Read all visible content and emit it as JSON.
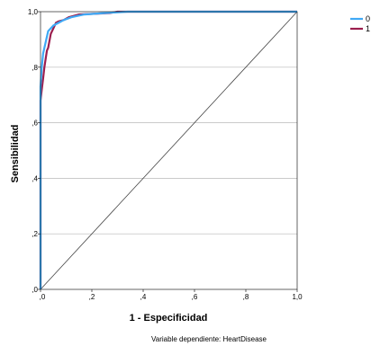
{
  "chart_data": {
    "type": "line",
    "title": "",
    "xlabel": "1 - Especificidad",
    "ylabel": "Sensibilidad",
    "footnote": "Variable dependiente: HeartDisease",
    "xlim": [
      0,
      1
    ],
    "ylim": [
      0,
      1
    ],
    "xticks": [
      ",0",
      ",2",
      ",4",
      ",6",
      ",8",
      "1,0"
    ],
    "yticks": [
      ",0",
      ",2",
      ",4",
      ",6",
      ",8",
      "1,0"
    ],
    "grid": "horizontal",
    "legend_position": "top-right",
    "series": [
      {
        "name": "0",
        "color": "#3fa9f5",
        "points": [
          [
            0,
            0
          ],
          [
            0,
            0.73
          ],
          [
            0.005,
            0.8
          ],
          [
            0.01,
            0.85
          ],
          [
            0.015,
            0.87
          ],
          [
            0.02,
            0.89
          ],
          [
            0.025,
            0.91
          ],
          [
            0.03,
            0.93
          ],
          [
            0.04,
            0.94
          ],
          [
            0.05,
            0.95
          ],
          [
            0.07,
            0.96
          ],
          [
            0.09,
            0.97
          ],
          [
            0.12,
            0.98
          ],
          [
            0.17,
            0.99
          ],
          [
            0.25,
            0.995
          ],
          [
            0.34,
            1.0
          ],
          [
            1.0,
            1.0
          ]
        ]
      },
      {
        "name": "1",
        "color": "#9b1e4e",
        "points": [
          [
            0,
            0
          ],
          [
            0,
            0.68
          ],
          [
            0.005,
            0.72
          ],
          [
            0.01,
            0.76
          ],
          [
            0.015,
            0.8
          ],
          [
            0.02,
            0.83
          ],
          [
            0.025,
            0.86
          ],
          [
            0.03,
            0.87
          ],
          [
            0.04,
            0.92
          ],
          [
            0.05,
            0.94
          ],
          [
            0.06,
            0.96
          ],
          [
            0.07,
            0.965
          ],
          [
            0.09,
            0.97
          ],
          [
            0.11,
            0.98
          ],
          [
            0.15,
            0.99
          ],
          [
            0.27,
            0.995
          ],
          [
            0.3,
            1.0
          ],
          [
            1.0,
            1.0
          ]
        ]
      },
      {
        "name": "",
        "color": "#444444",
        "points": [
          [
            0,
            0
          ],
          [
            1,
            1
          ]
        ]
      }
    ]
  }
}
